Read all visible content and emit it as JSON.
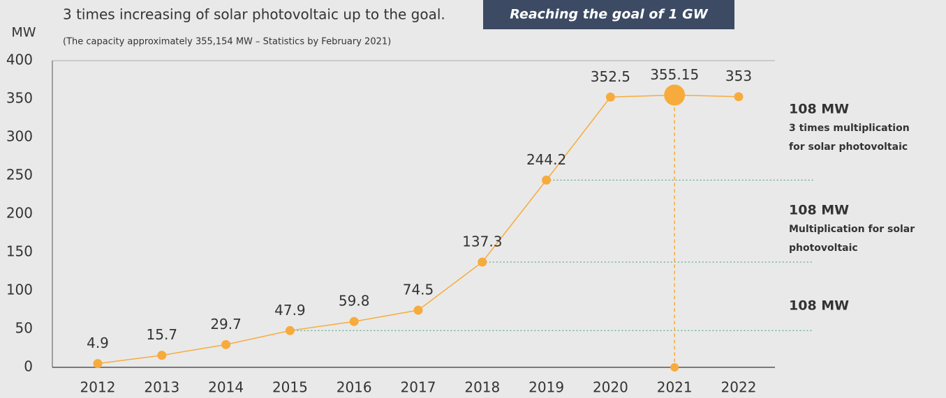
{
  "chart_data": {
    "type": "line",
    "title": "3 times increasing of solar photovoltaic up to the goal.",
    "banner": "Reaching the goal of 1 GW",
    "subtitle": "(The capacity approximately 355,154 MW – Statistics by February 2021)",
    "y_label": "MW",
    "categories": [
      "2012",
      "2013",
      "2014",
      "2015",
      "2016",
      "2017",
      "2018",
      "2019",
      "2020",
      "2021",
      "2022"
    ],
    "values": [
      4.9,
      15.7,
      29.7,
      47.9,
      59.8,
      74.5,
      137.3,
      244.2,
      352.5,
      355.15,
      353
    ],
    "color": "#f7ab3c",
    "ylim": [
      0,
      400
    ],
    "yticks": [
      0,
      50,
      100,
      150,
      200,
      250,
      300,
      350,
      400
    ],
    "annotations": [
      {
        "title": "108 MW",
        "lines": [
          "3 times multiplication",
          "for solar photovoltaic"
        ]
      },
      {
        "title": "108 MW",
        "lines": [
          "Multiplication for solar",
          "photovoltaic"
        ]
      },
      {
        "title": "108 MW",
        "lines": []
      }
    ]
  }
}
